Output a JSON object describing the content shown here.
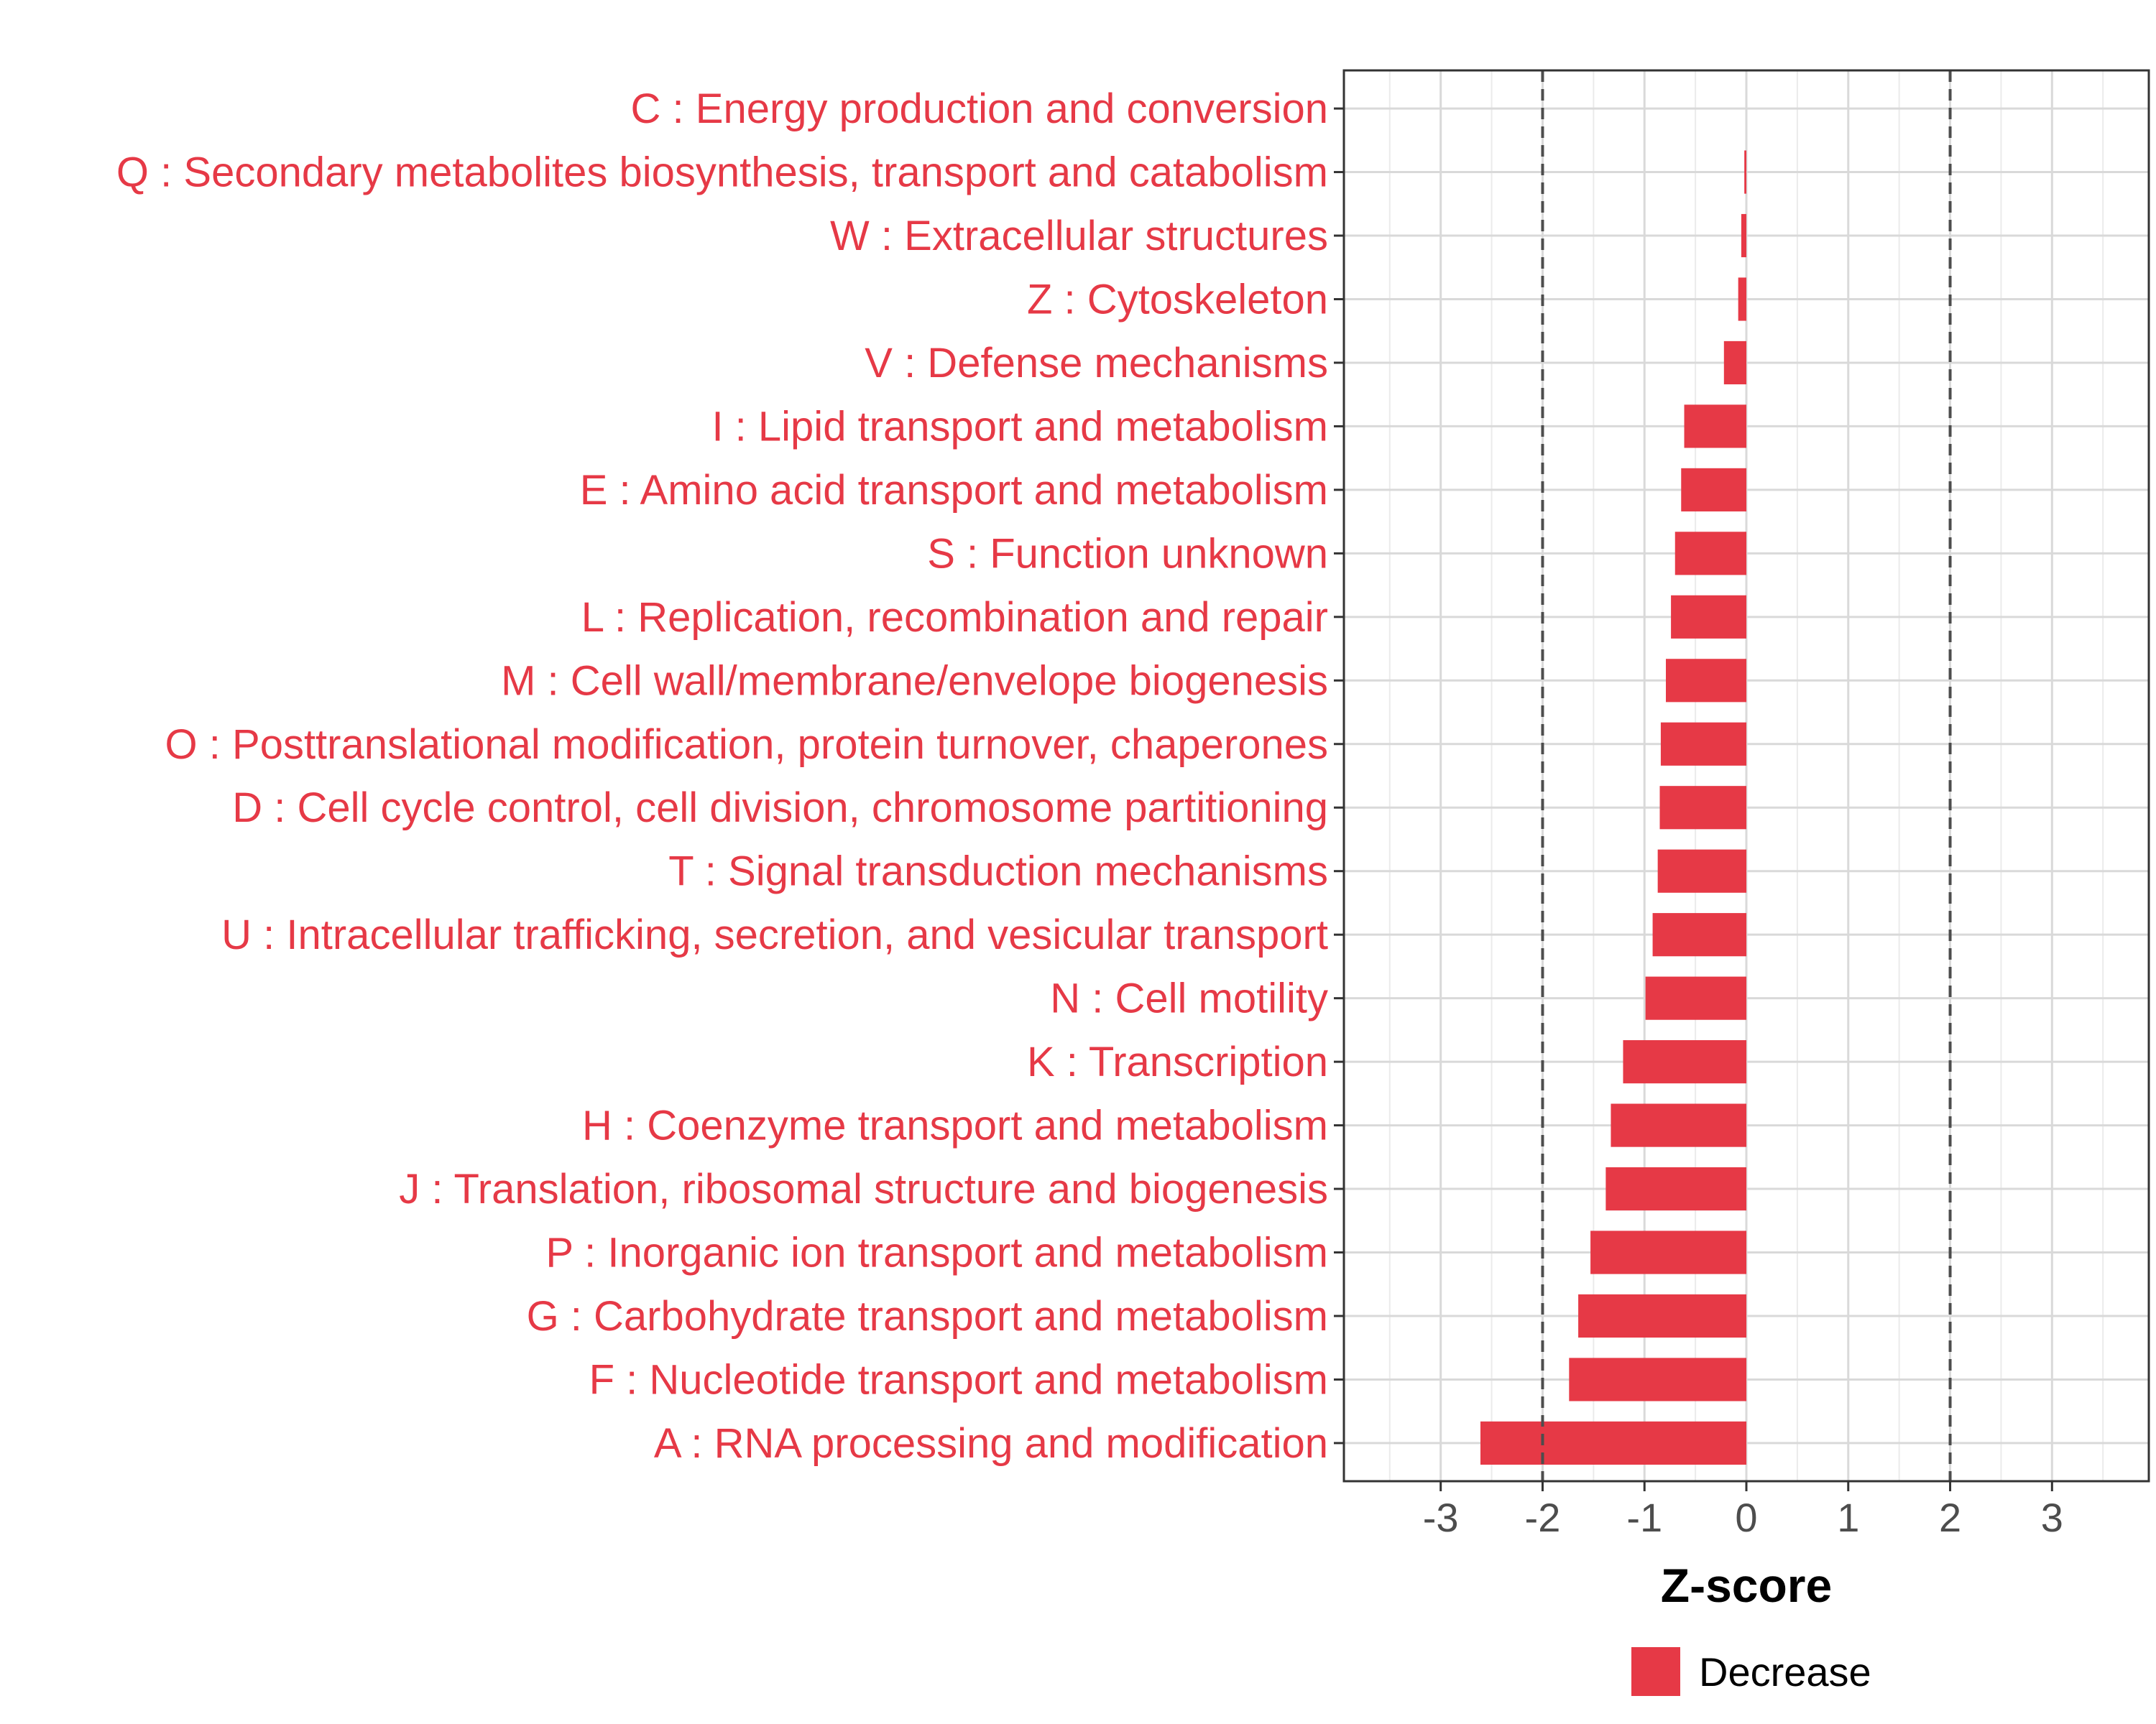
{
  "chart_data": {
    "type": "bar",
    "orientation": "horizontal",
    "categories": [
      "C : Energy production and conversion",
      "Q : Secondary metabolites biosynthesis, transport and catabolism",
      "W : Extracellular structures",
      "Z : Cytoskeleton",
      "V : Defense mechanisms",
      "I : Lipid transport and metabolism",
      "E : Amino acid transport and metabolism",
      "S : Function unknown",
      "L : Replication, recombination and repair",
      "M : Cell wall/membrane/envelope biogenesis",
      "O : Posttranslational modification, protein turnover, chaperones",
      "D : Cell cycle control, cell division, chromosome partitioning",
      "T : Signal transduction mechanisms",
      "U : Intracellular trafficking, secretion, and vesicular transport",
      "N : Cell motility",
      "K : Transcription",
      "H : Coenzyme transport and metabolism",
      "J : Translation, ribosomal structure and biogenesis",
      "P : Inorganic ion transport and metabolism",
      "G : Carbohydrate transport and metabolism",
      "F : Nucleotide transport and metabolism",
      "A : RNA processing and modification"
    ],
    "values": [
      0,
      -0.02,
      -0.05,
      -0.08,
      -0.22,
      -0.61,
      -0.64,
      -0.7,
      -0.74,
      -0.79,
      -0.84,
      -0.85,
      -0.87,
      -0.92,
      -0.99,
      -1.21,
      -1.33,
      -1.38,
      -1.53,
      -1.65,
      -1.74,
      -2.61
    ],
    "xlabel": "Z-score",
    "xlim": [
      -3.95,
      3.95
    ],
    "xticks": [
      -3,
      -2,
      -1,
      0,
      1,
      2,
      3
    ],
    "xtick_labels": [
      "-3",
      "-2",
      "-1",
      "0",
      "1",
      "2",
      "3"
    ],
    "reference_lines": [
      -2,
      2
    ],
    "legend": {
      "items": [
        {
          "label": "Decrease",
          "color": "#e63946"
        }
      ],
      "position": "bottom"
    },
    "colors": {
      "bar": "#e63946",
      "label": "#e63946",
      "grid": "#d9d9d9",
      "dashed": "#4d4d4d",
      "axis": "#333333"
    }
  }
}
